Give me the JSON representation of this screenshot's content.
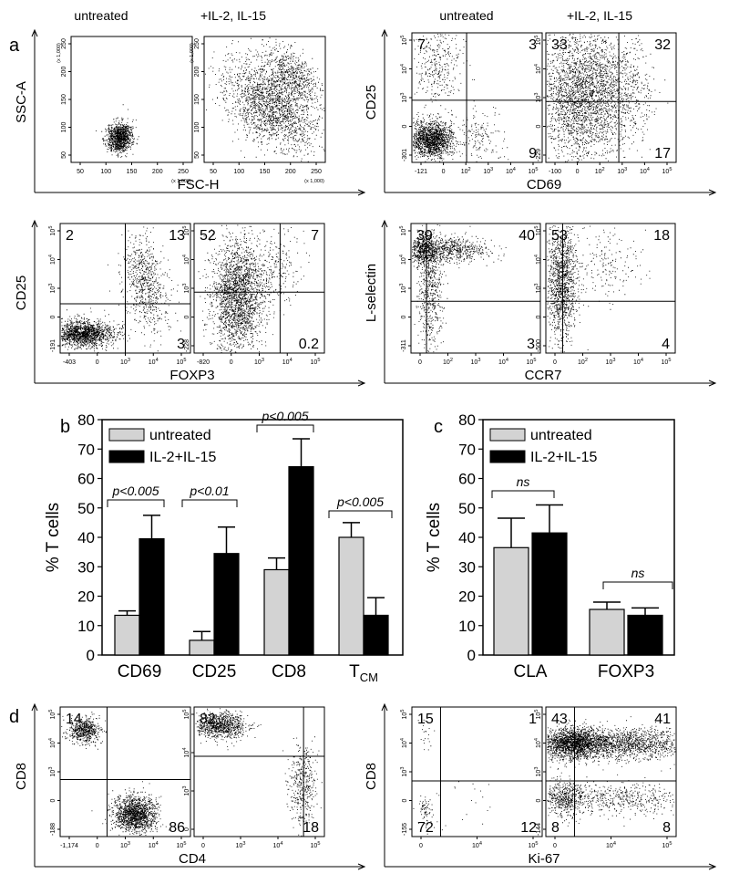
{
  "panel_letters": {
    "a": "a",
    "b": "b",
    "c": "c",
    "d": "d"
  },
  "column_headers": [
    "untreated",
    "+IL-2, IL-15",
    "untreated",
    "+IL-2, IL-15"
  ],
  "flow_groups": [
    {
      "id": "scatter",
      "xlabel": "FSC-H",
      "ylabel": "SSC-A",
      "yticks": [
        "250",
        "200",
        "150",
        "100",
        "50"
      ],
      "ymult": "(x 1,000)",
      "xticks": [
        "50",
        "100",
        "150",
        "200",
        "250"
      ],
      "xmult": "(x 1,000)",
      "plots": [
        {
          "quadrants": null
        },
        {
          "quadrants": null
        }
      ]
    },
    {
      "id": "cd25-cd69",
      "xlabel": "CD69",
      "ylabel": "CD25",
      "plots": [
        {
          "yticks": [
            "10^5",
            "10^4",
            "10^3",
            "0",
            "-301"
          ],
          "xticks": [
            "-121",
            "0",
            "10^2",
            "10^3",
            "10^4",
            "10^5"
          ],
          "quadrants": {
            "ul": "7",
            "ur": "3",
            "lr": "9"
          }
        },
        {
          "yticks": [
            "10^5",
            "10^4",
            "10^3",
            "0",
            "-229"
          ],
          "xticks": [
            "-100",
            "0",
            "10^2",
            "10^3",
            "10^4",
            "10^5"
          ],
          "quadrants": {
            "ul": "33",
            "ur": "32",
            "lr": "17"
          }
        }
      ]
    },
    {
      "id": "cd25-foxp3",
      "xlabel": "FOXP3",
      "ylabel": "CD25",
      "plots": [
        {
          "yticks": [
            "10^5",
            "10^4",
            "10^3",
            "0",
            "-191"
          ],
          "xticks": [
            "-403",
            "0",
            "10^3",
            "10^4",
            "10^5"
          ],
          "quadrants": {
            "ul": "2",
            "ur": "13",
            "lr": "3"
          }
        },
        {
          "yticks": [
            "10^5",
            "10^4",
            "10^3",
            "0",
            "-228"
          ],
          "xticks": [
            "-820",
            "0",
            "10^3",
            "10^4",
            "10^5"
          ],
          "quadrants": {
            "ul": "52",
            "ur": "7",
            "lr": "0.2"
          }
        }
      ]
    },
    {
      "id": "lsel-ccr7",
      "xlabel": "CCR7",
      "ylabel": "L-selectin",
      "plots": [
        {
          "yticks": [
            "10^5",
            "10^4",
            "10^3",
            "0",
            "-311"
          ],
          "xticks": [
            "0",
            "10^2",
            "10^3",
            "10^4",
            "10^5"
          ],
          "quadrants": {
            "ul": "39",
            "ur": "40",
            "lr": "3"
          }
        },
        {
          "yticks": [
            "10^5",
            "10^4",
            "10^3",
            "0",
            "-500"
          ],
          "xticks": [
            "0",
            "10^2",
            "10^3",
            "10^4",
            "10^5"
          ],
          "quadrants": {
            "ul": "53",
            "ur": "18",
            "lr": "4"
          }
        }
      ]
    },
    {
      "id": "cd8-cd4",
      "xlabel": "CD4",
      "ylabel": "CD8",
      "plots": [
        {
          "yticks": [
            "10^5",
            "10^4",
            "10^3",
            "0",
            "-188"
          ],
          "xticks": [
            "-1,174",
            "0",
            "10^3",
            "10^4",
            "10^5"
          ],
          "quadrants": {
            "ul": "14",
            "lr": "86"
          }
        },
        {
          "yticks": [
            "10^5",
            "10^4",
            "10^3",
            "0"
          ],
          "xticks": [
            "0",
            "10^3",
            "10^4",
            "10^5"
          ],
          "quadrants": {
            "ul": "82",
            "lr": "18"
          }
        }
      ]
    },
    {
      "id": "cd8-ki67",
      "xlabel": "Ki-67",
      "ylabel": "CD8",
      "plots": [
        {
          "yticks": [
            "10^5",
            "10^4",
            "10^3",
            "0",
            "-155"
          ],
          "xticks": [
            "0",
            "10^4",
            "10^5"
          ],
          "quadrants": {
            "ul": "15",
            "ur": "1",
            "ll": "72",
            "lr": "12"
          }
        },
        {
          "yticks": [
            "10^5",
            "10^4",
            "10^3",
            "0",
            "-144"
          ],
          "xticks": [
            "0",
            "10^4",
            "10^5"
          ],
          "quadrants": {
            "ul": "43",
            "ur": "41",
            "ll": "8",
            "lr": "8"
          }
        }
      ]
    }
  ],
  "chart_data": [
    {
      "type": "bar",
      "panel": "b",
      "ylabel": "% T cells",
      "ylim": [
        0,
        80
      ],
      "yticks": [
        "0",
        "10",
        "20",
        "30",
        "40",
        "50",
        "60",
        "70",
        "80"
      ],
      "categories": [
        "CD69",
        "CD25",
        "CD8",
        "T"
      ],
      "category_subscript": "CM",
      "legend": [
        "untreated",
        "IL-2+IL-15"
      ],
      "series": [
        {
          "name": "untreated",
          "color": "#d3d3d3",
          "values": [
            13.5,
            5,
            29,
            40
          ],
          "errors": [
            1.5,
            3,
            4,
            5
          ]
        },
        {
          "name": "IL-2+IL-15",
          "color": "#000000",
          "values": [
            39.5,
            34.5,
            64,
            13.5
          ],
          "errors": [
            8,
            9,
            9.5,
            6
          ]
        }
      ],
      "annotations": [
        "p<0.005",
        "p<0.01",
        "p<0.005",
        "p<0.005"
      ]
    },
    {
      "type": "bar",
      "panel": "c",
      "ylabel": "% T cells",
      "ylim": [
        0,
        80
      ],
      "yticks": [
        "0",
        "10",
        "20",
        "30",
        "40",
        "50",
        "60",
        "70",
        "80"
      ],
      "categories": [
        "CLA",
        "FOXP3"
      ],
      "legend": [
        "untreated",
        "IL-2+IL-15"
      ],
      "series": [
        {
          "name": "untreated",
          "color": "#d3d3d3",
          "values": [
            36.5,
            15.5
          ],
          "errors": [
            10,
            2.5
          ]
        },
        {
          "name": "IL-2+IL-15",
          "color": "#000000",
          "values": [
            41.5,
            13.5
          ],
          "errors": [
            9.5,
            2.5
          ]
        }
      ],
      "annotations": [
        "ns",
        "ns"
      ]
    }
  ]
}
